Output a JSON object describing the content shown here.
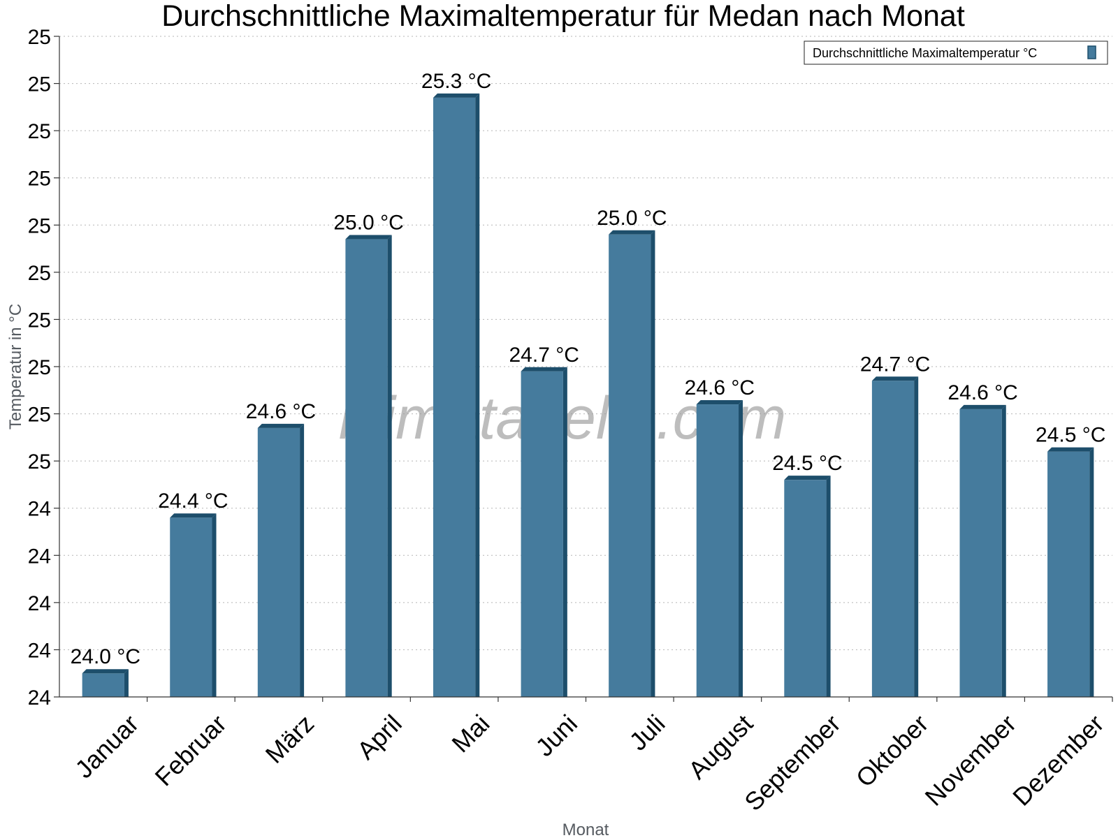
{
  "chart_data": {
    "type": "bar",
    "title": "Durchschnittliche Maximaltemperatur für Medan nach Monat",
    "xlabel": "Monat",
    "ylabel": "Temperatur in °C",
    "categories": [
      "Januar",
      "Februar",
      "März",
      "April",
      "Mai",
      "Juni",
      "Juli",
      "August",
      "September",
      "Oktober",
      "November",
      "Dezember"
    ],
    "series": [
      {
        "name": "Durchschnittliche Maximaltemperatur °C",
        "values": [
          24.05,
          24.38,
          24.57,
          24.97,
          25.27,
          24.69,
          24.98,
          24.62,
          24.46,
          24.67,
          24.61,
          24.52
        ],
        "labels": [
          "24.0 °C",
          "24.4 °C",
          "24.6 °C",
          "25.0 °C",
          "25.3 °C",
          "24.7 °C",
          "25.0 °C",
          "24.6 °C",
          "24.5 °C",
          "24.7 °C",
          "24.6 °C",
          "24.5 °C"
        ],
        "color": "#457b9d",
        "edge_color": "#1d4e6b"
      }
    ],
    "ylim": [
      24.0,
      25.4
    ],
    "yticks": [
      24.0,
      24.1,
      24.2,
      24.3,
      24.4,
      24.5,
      24.6,
      24.7,
      24.8,
      24.9,
      25.0,
      25.1,
      25.2,
      25.3,
      25.4
    ],
    "ytick_labels": [
      "24",
      "24",
      "24",
      "24",
      "24",
      "25",
      "25",
      "25",
      "25",
      "25",
      "25",
      "25",
      "25",
      "25",
      "25"
    ],
    "grid": true,
    "legend_position": "top-right",
    "watermark": "klimatabelle.com"
  }
}
